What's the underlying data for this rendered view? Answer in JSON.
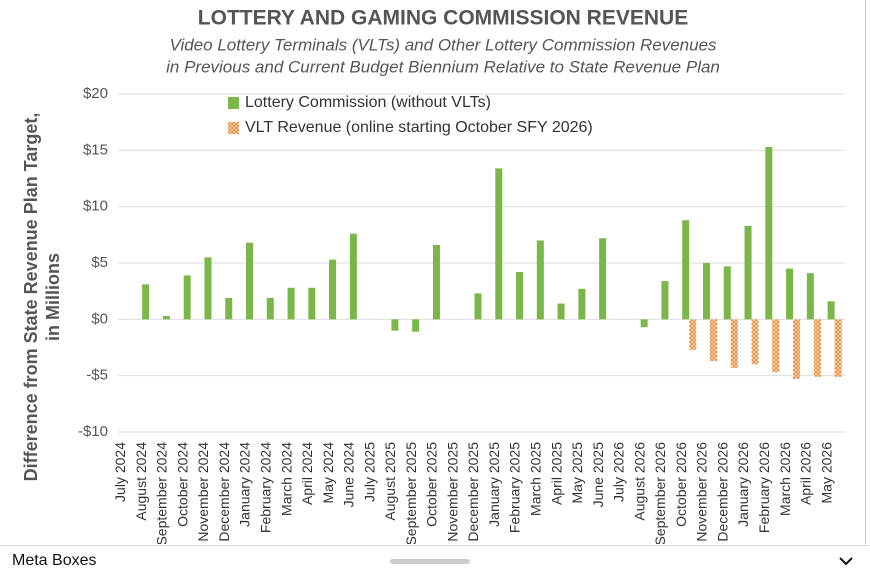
{
  "chart_data": {
    "type": "bar",
    "title": "LOTTERY AND GAMING COMMISSION REVENUE",
    "subtitle": [
      "Video Lottery Terminals (VLTs) and Other Lottery Commission Revenues",
      "in Previous and Current Budget Biennium Relative to State Revenue Plan"
    ],
    "y_label": [
      "Difference from State Revenue Plan Target,",
      "in Millions"
    ],
    "categories": [
      "July 2024",
      "August 2024",
      "September 2024",
      "October 2024",
      "November 2024",
      "December 2024",
      "January 2024",
      "February 2024",
      "March 2024",
      "April 2024",
      "May 2024",
      "June 2024",
      "July 2025",
      "August 2025",
      "September 2025",
      "October 2025",
      "November 2025",
      "December 2025",
      "January 2025",
      "February 2025",
      "March 2025",
      "April 2025",
      "May 2025",
      "June 2025",
      "July 2026",
      "August 2026",
      "September 2026",
      "October 2026",
      "November 2026",
      "December 2026",
      "January 2026",
      "February 2026",
      "March 2026",
      "April 2026",
      "May 2026"
    ],
    "series": [
      {
        "name": "Lottery Commission (without VLTs)",
        "color": "#7ab648",
        "values": [
          null,
          3.1,
          0.3,
          3.9,
          5.5,
          1.9,
          6.8,
          1.9,
          2.8,
          2.8,
          5.3,
          7.6,
          null,
          -1.0,
          -1.1,
          6.6,
          null,
          2.3,
          13.4,
          4.2,
          7.0,
          1.4,
          2.7,
          7.2,
          null,
          -0.7,
          3.4,
          8.8,
          5.0,
          4.7,
          8.3,
          15.3,
          4.5,
          4.1,
          1.6
        ]
      },
      {
        "name": "VLT Revenue (online starting October SFY 2026)",
        "color": "#f08c3c",
        "pattern": "crosshatch",
        "values": [
          null,
          null,
          null,
          null,
          null,
          null,
          null,
          null,
          null,
          null,
          null,
          null,
          null,
          null,
          null,
          null,
          null,
          null,
          null,
          null,
          null,
          null,
          null,
          null,
          null,
          null,
          null,
          -2.7,
          -3.7,
          -4.3,
          -4.0,
          -4.7,
          -5.3,
          -5.1,
          -5.1
        ]
      }
    ],
    "ylim": [
      -10,
      20
    ],
    "yticks": [
      {
        "value": -10,
        "label": "-$10"
      },
      {
        "value": -5,
        "label": "-$5"
      },
      {
        "value": 0,
        "label": "$0"
      },
      {
        "value": 5,
        "label": "$5"
      },
      {
        "value": 10,
        "label": "$10"
      },
      {
        "value": 15,
        "label": "$15"
      },
      {
        "value": 20,
        "label": "$20"
      }
    ],
    "grid": true
  },
  "footer": {
    "label": "Meta Boxes"
  }
}
